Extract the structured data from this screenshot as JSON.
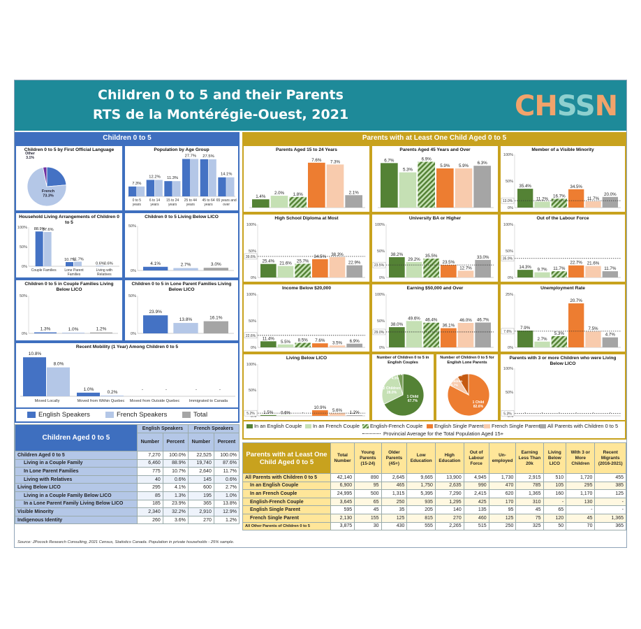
{
  "banner": {
    "title": "Children 0 to 5 and their Parents",
    "subtitle": "RTS de la Montérégie-Ouest, 2021",
    "logo": "CHSSN"
  },
  "colors": {
    "blue_dark": "#4472c4",
    "blue_light": "#b4c7e7",
    "grey": "#a5a5a5",
    "green_dark": "#548235",
    "green_light": "#c5e0b4",
    "orange_dark": "#ed7d31",
    "orange_light": "#f8cbad",
    "teal": "#1e8a99",
    "gold": "#c8a21e"
  },
  "left_section": {
    "header": "Children 0 to 5",
    "legend": [
      "English Speakers",
      "French Speakers",
      "Total"
    ]
  },
  "right_section": {
    "header": "Parents with at Least One Child Aged 0 to 5",
    "legend": [
      "In an English Couple",
      "In an French Couple",
      "English-French Couple",
      "English Single Parent",
      "French Single Parent",
      "All Parents with Children 0 to 5"
    ],
    "provincial_note": "Provincial Average for the Total Population Aged 15+"
  },
  "charts": {
    "language": {
      "title": "Children 0 to 5 by First Official Language",
      "chart_data": {
        "type": "pie",
        "slices": [
          {
            "label": "English",
            "value": 23.7,
            "text": "English 23.7%"
          },
          {
            "label": "French",
            "value": 73.3,
            "text": "French 73.3%"
          },
          {
            "label": "Other",
            "value": 3.1,
            "text": "Other 3.1%"
          }
        ]
      }
    },
    "age": {
      "title": "Population by Age Group",
      "chart_data": {
        "type": "bar",
        "categories": [
          "0 to 5 years",
          "6 to 14 years",
          "15 to 24 years",
          "25 to 44 years",
          "45 to 64 years",
          "65 years and over"
        ],
        "series": [
          {
            "values": [
              7.3,
              12.2,
              11.3,
              27.7,
              27.5,
              14.1
            ]
          },
          {
            "values": [
              7.3,
              12.2,
              11.3,
              27.7,
              27.5,
              14.1
            ]
          }
        ],
        "labels": [
          "7.3%",
          "12.2%",
          "11.3%",
          "27.7%",
          "27.5%",
          "14.1%"
        ],
        "ylim": [
          0,
          30
        ]
      }
    },
    "household": {
      "title": "Household Living Arrangements of Children 0 to 5",
      "chart_data": {
        "type": "bar",
        "categories": [
          "Couple Families",
          "Lone Parent Families",
          "Living with Relatives"
        ],
        "series": [
          {
            "name": "English Speakers",
            "values": [
              88.9,
              10.7,
              0.6
            ]
          },
          {
            "name": "French Speakers",
            "values": [
              87.6,
              11.7,
              0.6
            ]
          }
        ],
        "yticks": [
          "100%",
          "50%",
          "0%"
        ],
        "ylim": [
          0,
          100
        ]
      }
    },
    "licoall": {
      "title": "Children 0 to 5 Living Below LICO",
      "chart_data": {
        "type": "bar",
        "series": [
          {
            "name": "English Speakers",
            "values": [
              4.1
            ]
          },
          {
            "name": "French Speakers",
            "values": [
              2.7
            ]
          },
          {
            "name": "Total",
            "values": [
              3.0
            ]
          }
        ],
        "yticks": [
          "50%",
          "0%"
        ],
        "ylim": [
          0,
          50
        ]
      }
    },
    "licocouple": {
      "title": "Children 0 to 5 in Couple Families Living Below LICO",
      "chart_data": {
        "type": "bar",
        "series": [
          {
            "name": "English Speakers",
            "values": [
              1.3
            ]
          },
          {
            "name": "French Speakers",
            "values": [
              1.0
            ]
          },
          {
            "name": "Total",
            "values": [
              1.2
            ]
          }
        ],
        "yticks": [
          "50%",
          "0%"
        ],
        "ylim": [
          0,
          50
        ]
      }
    },
    "licolone": {
      "title": "Children 0 to 5 in Lone Parent Families Living Below LICO",
      "chart_data": {
        "type": "bar",
        "series": [
          {
            "name": "English Speakers",
            "values": [
              23.9
            ]
          },
          {
            "name": "French Speakers",
            "values": [
              13.8
            ]
          },
          {
            "name": "Total",
            "values": [
              16.1
            ]
          }
        ],
        "yticks": [
          "50%",
          "0%"
        ],
        "ylim": [
          0,
          50
        ]
      }
    },
    "mobility": {
      "title": "Recent Mobility (1 Year) Among Children 0 to 5",
      "chart_data": {
        "type": "bar",
        "categories": [
          "Moved Locally",
          "Moved from Within Quebec",
          "Moved from Outside Quebec",
          "Immigrated to Canada"
        ],
        "series": [
          {
            "name": "English Speakers",
            "values": [
              10.8,
              1.0,
              null,
              null
            ]
          },
          {
            "name": "French Speakers",
            "values": [
              8.0,
              0.2,
              null,
              null
            ]
          }
        ],
        "ylim": [
          0,
          12
        ]
      }
    },
    "p1524": {
      "title": "Parents Aged 15 to 24 Years",
      "chart_data": {
        "type": "bar",
        "values": [
          1.4,
          2.0,
          1.8,
          7.6,
          7.3,
          2.1
        ],
        "ylim": [
          0,
          9
        ]
      }
    },
    "p45": {
      "title": "Parents Aged 45 Years and Over",
      "chart_data": {
        "type": "bar",
        "values": [
          6.7,
          5.3,
          6.9,
          5.9,
          5.9,
          6.3
        ],
        "ylim": [
          0,
          8
        ]
      }
    },
    "visible": {
      "title": "Member of a Visible Minority",
      "chart_data": {
        "type": "bar",
        "values": [
          35.4,
          11.2,
          16.7,
          34.5,
          11.7,
          20.0
        ],
        "provincial": 13.0,
        "yticks": [
          "100%",
          "50%",
          "0%"
        ],
        "ylim": [
          0,
          100
        ]
      }
    },
    "highschool": {
      "title": "High School Diploma at Most",
      "chart_data": {
        "type": "bar",
        "values": [
          25.4,
          21.6,
          25.7,
          34.5,
          38.3,
          22.9
        ],
        "provincial": 39.6,
        "yticks": [
          "100%",
          "50%",
          "0%"
        ],
        "ylim": [
          0,
          100
        ]
      }
    },
    "univ": {
      "title": "University BA or Higher",
      "chart_data": {
        "type": "bar",
        "values": [
          38.2,
          29.2,
          35.5,
          23.5,
          12.7,
          33.0
        ],
        "provincial": 23.5,
        "yticks": [
          "100%",
          "50%",
          "0%"
        ],
        "ylim": [
          0,
          100
        ]
      }
    },
    "outlabour": {
      "title": "Out of the Labour Force",
      "chart_data": {
        "type": "bar",
        "values": [
          14.3,
          9.7,
          11.7,
          22.7,
          21.6,
          11.7
        ],
        "provincial": 35.9,
        "yticks": [
          "100%",
          "50%",
          "0%"
        ],
        "ylim": [
          0,
          100
        ]
      }
    },
    "income": {
      "title": "Income Below $20,000",
      "chart_data": {
        "type": "bar",
        "values": [
          11.4,
          5.5,
          8.5,
          7.6,
          3.5,
          6.9
        ],
        "provincial": 22.6,
        "yticks": [
          "100%",
          "50%",
          "0%"
        ],
        "ylim": [
          0,
          100
        ]
      }
    },
    "earning": {
      "title": "Earning $50,000 and Over",
      "chart_data": {
        "type": "bar",
        "values": [
          38.0,
          49.6,
          46.4,
          36.1,
          46.0,
          46.7
        ],
        "provincial": 29.0,
        "yticks": [
          "100%",
          "50%",
          "0%"
        ],
        "ylim": [
          0,
          100
        ]
      }
    },
    "unemp": {
      "title": "Unemployment Rate",
      "chart_data": {
        "type": "bar",
        "values": [
          7.9,
          2.7,
          5.3,
          20.7,
          7.5,
          4.7
        ],
        "provincial": 7.6,
        "yticks": [
          "25%",
          "0%"
        ],
        "ylim": [
          0,
          25
        ]
      }
    },
    "licop": {
      "title": "Living Below LICO",
      "chart_data": {
        "type": "bar",
        "values": [
          1.5,
          0.6,
          null,
          10.9,
          5.6,
          1.2
        ],
        "provincial": 5.2,
        "yticks": [
          "100%",
          "50%",
          "0%"
        ],
        "ylim": [
          0,
          100
        ]
      }
    },
    "piecouple": {
      "title": "Number of Children 0 to 5 in English Couples",
      "chart_data": {
        "type": "pie",
        "slices": [
          {
            "label": "1 Child",
            "value": 67.7,
            "text": "1 Child 67.7%"
          },
          {
            "label": "2 Children",
            "value": 28.0,
            "text": "2 Children 28.0%"
          },
          {
            "label": "3 or More",
            "value": 4.3,
            "text": "3 or More 4.3%"
          }
        ]
      }
    },
    "pielone": {
      "title": "Number of Children 0 to 5 for English Lone Parents",
      "chart_data": {
        "type": "pie",
        "slices": [
          {
            "label": "1 Child",
            "value": 82.6,
            "text": "1 Child 82.6%"
          },
          {
            "label": "2 Children",
            "value": 8.7,
            "text": "2 Children 8.7%"
          },
          {
            "label": "3 or More",
            "value": 8.7,
            "text": "3 or More 8.7%"
          }
        ]
      }
    },
    "threeplus": {
      "title": "Parents with 3 or more Children who were Living Below LICO",
      "chart_data": {
        "type": "bar",
        "values": [
          null,
          null,
          null,
          null,
          null,
          null
        ],
        "provincial": 5.3,
        "yticks": [
          "100%",
          "50%",
          "0%"
        ],
        "ylim": [
          0,
          100
        ]
      }
    }
  },
  "tableL": {
    "title": "Children Aged 0 to 5",
    "groups": [
      "English Speakers",
      "French Speakers"
    ],
    "subheads": [
      "Number",
      "Percent",
      "Number",
      "Percent"
    ],
    "rows": [
      [
        "Children Aged 0 to 5",
        "7,270",
        "100.0%",
        "22,525",
        "100.0%"
      ],
      [
        "Living in a Couple Family",
        "6,460",
        "88.9%",
        "19,740",
        "87.6%"
      ],
      [
        "In Lone Parent Families",
        "775",
        "10.7%",
        "2,640",
        "11.7%"
      ],
      [
        "Living with Relatives",
        "40",
        "0.6%",
        "145",
        "0.6%"
      ],
      [
        "Living Below LICO",
        "295",
        "4.1%",
        "600",
        "2.7%"
      ],
      [
        "Living in a Couple Family Below LICO",
        "85",
        "1.3%",
        "195",
        "1.0%"
      ],
      [
        "In a Lone Parent Family Living Below LICO",
        "185",
        "23.9%",
        "365",
        "13.8%"
      ],
      [
        "Visible Minority",
        "2,340",
        "32.2%",
        "2,910",
        "12.9%"
      ],
      [
        "Indigenous Identity",
        "260",
        "3.6%",
        "270",
        "1.2%"
      ]
    ]
  },
  "tableR": {
    "title": "Parents with at Least One Child Aged 0 to 5",
    "headers": [
      "Total Number",
      "Young Parents (15-24)",
      "Older Parents (45+)",
      "Low Education",
      "High Education",
      "Out of Labour Force",
      "Un-employed",
      "Earning Less Than 20k",
      "Living Below LICO",
      "With 3 or More Children",
      "Recent Migrants (2016-2021)"
    ],
    "rows": [
      [
        "All Parents with Children 0 to 5",
        "42,140",
        "890",
        "2,645",
        "9,665",
        "13,900",
        "4,945",
        "1,730",
        "2,915",
        "510",
        "1,720",
        "455"
      ],
      [
        "In an English Couple",
        "6,900",
        "95",
        "465",
        "1,750",
        "2,635",
        "990",
        "470",
        "785",
        "105",
        "295",
        "385"
      ],
      [
        "In an French Couple",
        "24,995",
        "500",
        "1,315",
        "5,395",
        "7,290",
        "2,415",
        "620",
        "1,365",
        "160",
        "1,170",
        "125"
      ],
      [
        "English-French Couple",
        "3,645",
        "65",
        "250",
        "935",
        "1,295",
        "425",
        "170",
        "310",
        "-",
        "130",
        "-"
      ],
      [
        "English Single Parent",
        "595",
        "45",
        "35",
        "205",
        "140",
        "135",
        "95",
        "45",
        "65",
        "-",
        "-"
      ],
      [
        "French Single Parent",
        "2,130",
        "155",
        "125",
        "815",
        "270",
        "460",
        "125",
        "75",
        "120",
        "45",
        "1,365"
      ],
      [
        "All Other Parents of Children 0 to 5",
        "3,875",
        "30",
        "430",
        "555",
        "2,265",
        "515",
        "250",
        "325",
        "50",
        "70",
        "365"
      ]
    ]
  },
  "source": "Source: JPocock Research Consulting, 2021 Census, Statistics Canada. Population in private households - 25% sample."
}
